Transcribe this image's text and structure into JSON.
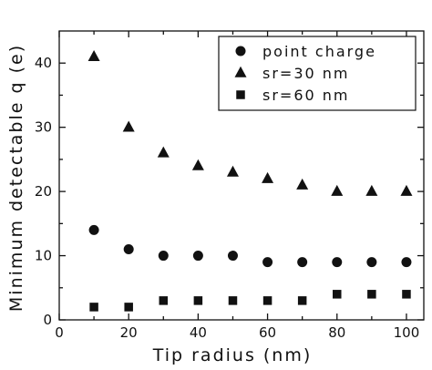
{
  "chart_data": {
    "type": "scatter",
    "xlabel": "Tip radius (nm)",
    "ylabel": "Minimum detectable q (e)",
    "xlim": [
      0,
      105
    ],
    "ylim": [
      0,
      45
    ],
    "xticks": [
      0,
      20,
      40,
      60,
      80,
      100
    ],
    "yticks": [
      0,
      10,
      20,
      30,
      40
    ],
    "x_minor_step": 10,
    "y_minor_step": 5,
    "grid": false,
    "legend_position": "top-right",
    "series": [
      {
        "name": "point charge",
        "marker": "circle",
        "color": "#111111",
        "x": [
          10,
          20,
          30,
          40,
          50,
          60,
          70,
          80,
          90,
          100
        ],
        "y": [
          14,
          11,
          10,
          10,
          10,
          9,
          9,
          9,
          9,
          9
        ]
      },
      {
        "name": "sr=30 nm",
        "marker": "triangle",
        "color": "#111111",
        "x": [
          10,
          20,
          30,
          40,
          50,
          60,
          70,
          80,
          90,
          100
        ],
        "y": [
          41,
          30,
          26,
          24,
          23,
          22,
          21,
          20,
          20,
          20
        ]
      },
      {
        "name": "sr=60 nm",
        "marker": "square",
        "color": "#111111",
        "x": [
          10,
          20,
          30,
          40,
          50,
          60,
          70,
          80,
          90,
          100
        ],
        "y": [
          2,
          2,
          3,
          3,
          3,
          3,
          3,
          4,
          4,
          4
        ]
      }
    ]
  }
}
